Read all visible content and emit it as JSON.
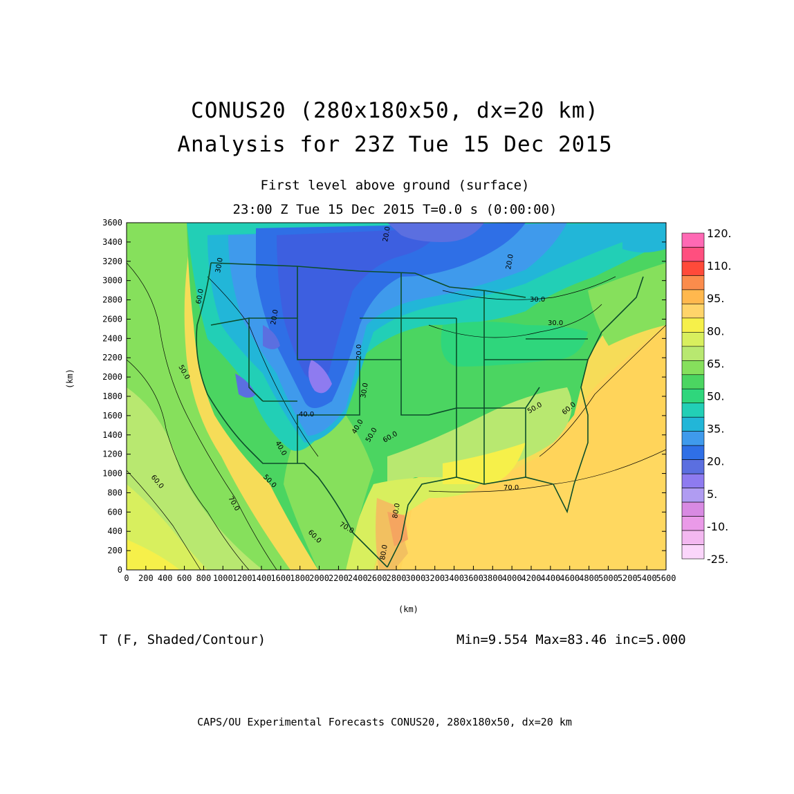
{
  "header": {
    "title_line1": "CONUS20 (280x180x50, dx=20 km)",
    "title_line2": "Analysis for 23Z Tue 15 Dec 2015",
    "subtitle_line1": "First level above ground (surface)",
    "subtitle_line2": "23:00 Z Tue 15 Dec 2015    T=0.0 s (0:00:00)"
  },
  "axes": {
    "x_unit": "(km)",
    "y_unit": "(km)",
    "x_ticks": [
      "0",
      "200",
      "400",
      "600",
      "800",
      "1000",
      "1200",
      "1400",
      "1600",
      "1800",
      "2000",
      "2200",
      "2400",
      "2600",
      "2800",
      "3000",
      "3200",
      "3400",
      "3600",
      "3800",
      "4000",
      "4200",
      "4400",
      "4600",
      "4800",
      "5000",
      "5200",
      "5400",
      "5600"
    ],
    "y_ticks": [
      "0",
      "200",
      "400",
      "600",
      "800",
      "1000",
      "1200",
      "1400",
      "1600",
      "1800",
      "2000",
      "2200",
      "2400",
      "2600",
      "2800",
      "3000",
      "3200",
      "3400",
      "3600"
    ],
    "x_range": [
      0,
      5600
    ],
    "y_range": [
      0,
      3600
    ]
  },
  "colorbar": {
    "labels": [
      "120.",
      "110.",
      "95.",
      "80.",
      "65.",
      "50.",
      "35.",
      "20.",
      "5.",
      "-10.",
      "-25."
    ],
    "colors": [
      "#ff69b4",
      "#ff4f7f",
      "#ff4a3a",
      "#fb8c4c",
      "#ffb84e",
      "#ffd46a",
      "#f6f04a",
      "#d8ef5e",
      "#b8e870",
      "#86e05c",
      "#4bd561",
      "#2fd67c",
      "#22cfb6",
      "#22b6d8",
      "#3f9aec",
      "#2f6fe6",
      "#5b6fe0",
      "#8e7bf0",
      "#b09cf2",
      "#d88ae2",
      "#ea9ae8",
      "#f3b8f0",
      "#fbd6fb"
    ]
  },
  "map": {
    "contour_labels": [
      "30.0",
      "20.0",
      "40.0",
      "50.0",
      "60.0",
      "70.0",
      "80.0",
      "30.0",
      "20.0",
      "20.0",
      "30.0",
      "40.0",
      "50.0",
      "60.0",
      "50.0",
      "60.0",
      "70.0",
      "60.0",
      "50.0",
      "60.0",
      "70.0",
      "80.0",
      "20.0",
      "30.0",
      "40.0"
    ]
  },
  "footer": {
    "field": "T (F, Shaded/Contour)",
    "stats": "Min=9.554 Max=83.46 inc=5.000",
    "credit": "CAPS/OU Experimental Forecasts  CONUS20, 280x180x50, dx=20 km"
  }
}
